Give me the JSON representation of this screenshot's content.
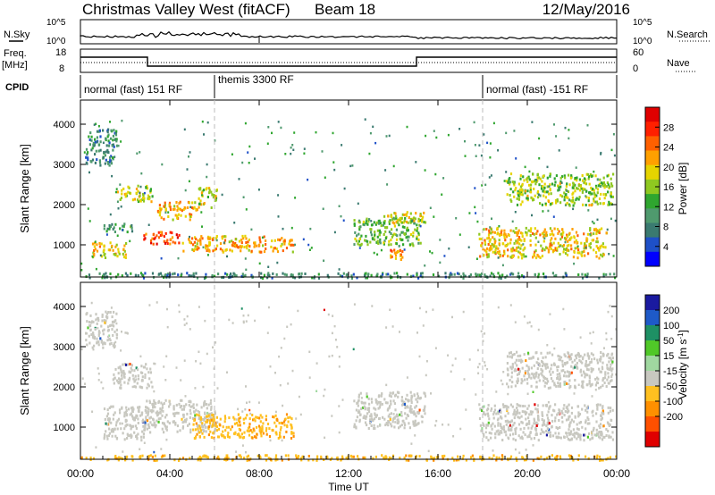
{
  "header": {
    "station": "Christmas Valley West (fitACF)",
    "beam": "Beam 18",
    "date": "12/May/2016"
  },
  "noise_panel": {
    "left_label": "N.Sky",
    "right_label": "N.Search",
    "left_ticks": [
      "10^5",
      "10^0"
    ],
    "right_ticks": [
      "10^5",
      "10^0"
    ]
  },
  "freq_panel": {
    "left_label_1": "Freq.",
    "left_label_2": "[MHz]",
    "right_label": "Nave",
    "left_ticks": [
      "18",
      "8"
    ],
    "right_ticks": [
      "60",
      "0"
    ]
  },
  "cpid": {
    "label": "CPID",
    "segments": [
      {
        "label": "normal (fast) 151 RF",
        "start_h": 0,
        "end_h": 6
      },
      {
        "label": "themis 3300 RF",
        "start_h": 6,
        "end_h": 18
      },
      {
        "label": "normal (fast) -151 RF",
        "start_h": 18,
        "end_h": 24
      }
    ]
  },
  "x_axis": {
    "label": "Time UT",
    "ticks": [
      "00:00",
      "04:00",
      "08:00",
      "12:00",
      "16:00",
      "20:00",
      "00:00"
    ],
    "tick_hours": [
      0,
      4,
      8,
      12,
      16,
      20,
      24
    ]
  },
  "power_colorbar": {
    "label": "Power [dB]",
    "ticks": [
      "28",
      "24",
      "20",
      "16",
      "12",
      "8",
      "4"
    ],
    "tick_values": [
      28,
      24,
      20,
      16,
      12,
      8,
      4
    ],
    "range": [
      0,
      32
    ],
    "colors": [
      "#0000ff",
      "#1e50c8",
      "#3a7a70",
      "#4f9a6e",
      "#2fa62f",
      "#8fc820",
      "#e6d400",
      "#ffa000",
      "#ff6000",
      "#ff2000",
      "#e00000"
    ]
  },
  "velocity_colorbar": {
    "label": "Velocity [m s^-1]",
    "label_main": "Velocity [m s",
    "label_exp": "-1",
    "label_end": "]",
    "ticks": [
      "200",
      "100",
      "50",
      "15",
      "-15",
      "-50",
      "-100",
      "-200"
    ],
    "colors": [
      "#1a1aa0",
      "#1e5ac8",
      "#1e9064",
      "#50c828",
      "#a0d8a0",
      "#c8c8c0",
      "#ffc020",
      "#ff9000",
      "#ff5000",
      "#e00000"
    ]
  },
  "chart_data": [
    {
      "type": "heatmap",
      "name": "power",
      "ylabel": "Slant Range [km]",
      "xlabel": "Time UT",
      "xlim": [
        0,
        24
      ],
      "ylim": [
        200,
        4600
      ],
      "yticks": [
        1000,
        2000,
        3000,
        4000
      ],
      "features": [
        {
          "t0": 0.2,
          "t1": 1.6,
          "r0": 3000,
          "r1": 3900,
          "level": 8
        },
        {
          "t0": 1.6,
          "t1": 3.2,
          "r0": 2100,
          "r1": 2500,
          "level": 18
        },
        {
          "t0": 1.0,
          "t1": 2.4,
          "r0": 1350,
          "r1": 1550,
          "level": 10
        },
        {
          "t0": 2.8,
          "t1": 4.4,
          "r0": 1050,
          "r1": 1350,
          "level": 27
        },
        {
          "t0": 3.4,
          "t1": 5.2,
          "r0": 1650,
          "r1": 2100,
          "level": 22
        },
        {
          "t0": 0.5,
          "t1": 2.0,
          "r0": 700,
          "r1": 1100,
          "level": 20
        },
        {
          "t0": 4.5,
          "t1": 9.5,
          "r0": 850,
          "r1": 1250,
          "level": 22
        },
        {
          "t0": 5.2,
          "t1": 6.1,
          "r0": 1950,
          "r1": 2450,
          "level": 18
        },
        {
          "t0": 12.2,
          "t1": 15.2,
          "r0": 1000,
          "r1": 1700,
          "level": 14
        },
        {
          "t0": 13.5,
          "t1": 15.4,
          "r0": 1550,
          "r1": 1850,
          "level": 18
        },
        {
          "t0": 13.8,
          "t1": 14.4,
          "r0": 650,
          "r1": 900,
          "level": 24
        },
        {
          "t0": 17.8,
          "t1": 23.6,
          "r0": 700,
          "r1": 1450,
          "level": 20
        },
        {
          "t0": 19.0,
          "t1": 23.8,
          "r0": 2000,
          "r1": 2800,
          "level": 16
        },
        {
          "t0": 0.0,
          "t1": 24.0,
          "r0": 200,
          "r1": 330,
          "level": 8
        }
      ]
    },
    {
      "type": "heatmap",
      "name": "velocity",
      "ylabel": "Slant Range [km]",
      "xlabel": "Time UT",
      "xlim": [
        0,
        24
      ],
      "ylim": [
        200,
        4600
      ],
      "yticks": [
        1000,
        2000,
        3000,
        4000
      ],
      "features": [
        {
          "t0": 0.2,
          "t1": 1.6,
          "r0": 3000,
          "r1": 3900,
          "v": 0
        },
        {
          "t0": 1.4,
          "t1": 3.2,
          "r0": 2000,
          "r1": 2600,
          "v": 0
        },
        {
          "t0": 1.0,
          "t1": 3.0,
          "r0": 700,
          "r1": 1550,
          "v": 0
        },
        {
          "t0": 2.8,
          "t1": 6.0,
          "r0": 900,
          "r1": 1700,
          "v": 0
        },
        {
          "t0": 5.0,
          "t1": 9.5,
          "r0": 750,
          "r1": 1350,
          "v": -40
        },
        {
          "t0": 12.2,
          "t1": 15.4,
          "r0": 1000,
          "r1": 1900,
          "v": 0
        },
        {
          "t0": 17.8,
          "t1": 23.8,
          "r0": 700,
          "r1": 1600,
          "v": 0
        },
        {
          "t0": 19.0,
          "t1": 23.8,
          "r0": 2000,
          "r1": 2900,
          "v": 0
        },
        {
          "t0": 0.0,
          "t1": 24.0,
          "r0": 200,
          "r1": 330,
          "v": -40
        }
      ]
    }
  ]
}
